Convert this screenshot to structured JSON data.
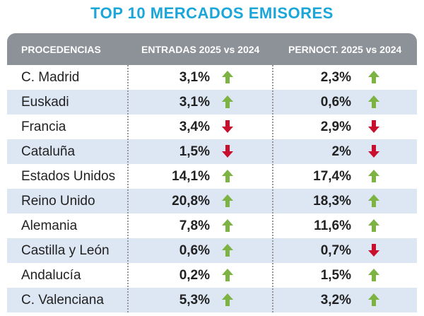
{
  "title": "TOP 10 MERCADOS EMISORES",
  "table": {
    "headers": [
      "PROCEDENCIAS",
      "ENTRADAS 2025 vs 2024",
      "PERNOCT. 2025 vs 2024"
    ],
    "rows": [
      [
        "C. Madrid",
        "3,1%",
        "2,3%"
      ],
      [
        "Euskadi",
        "3,1%",
        "0,6%"
      ],
      [
        "Francia",
        "3,4%",
        "2,9%"
      ],
      [
        "Cataluña",
        "1,5%",
        "2%"
      ],
      [
        "Estados Unidos",
        "14,1%",
        "17,4%"
      ],
      [
        "Reino Unido",
        "20,8%",
        "18,3%"
      ],
      [
        "Alemania",
        "7,8%",
        "11,6%"
      ],
      [
        "Castilla y León",
        "0,6%",
        "0,7%"
      ],
      [
        "Andalucía",
        "0,2%",
        "1,5%"
      ],
      [
        "C. Valenciana",
        "5,3%",
        "3,2%"
      ]
    ]
  }
}
